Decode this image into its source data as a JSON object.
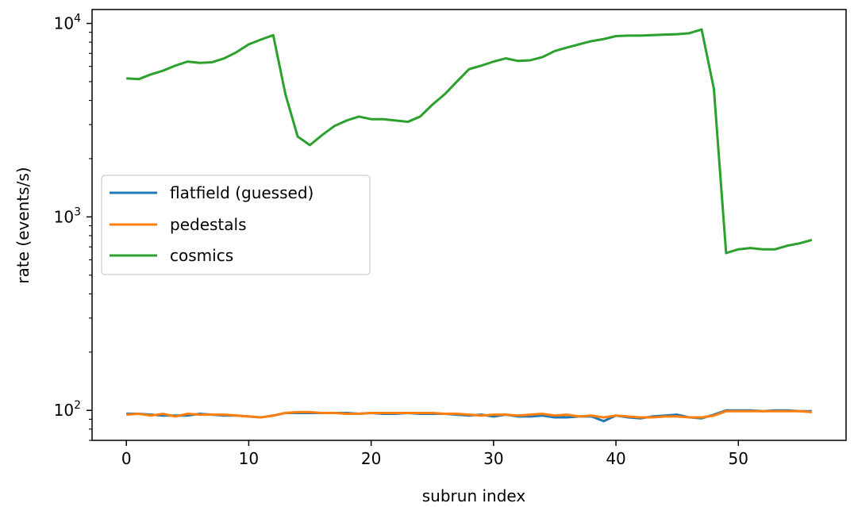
{
  "chart_data": {
    "type": "line",
    "title": "",
    "xlabel": "subrun index",
    "ylabel": "rate (events/s)",
    "yscale": "log",
    "xlim": [
      -2.8,
      58.8
    ],
    "ylim": [
      70,
      11800
    ],
    "grid": false,
    "legend_position": "center-left",
    "x_ticks": [
      0,
      10,
      20,
      30,
      40,
      50
    ],
    "y_ticks": [
      {
        "value": 100,
        "base": "10",
        "exp": "2"
      },
      {
        "value": 1000,
        "base": "10",
        "exp": "3"
      },
      {
        "value": 10000,
        "base": "10",
        "exp": "4"
      }
    ],
    "x": [
      0,
      1,
      2,
      3,
      4,
      5,
      6,
      7,
      8,
      9,
      10,
      11,
      12,
      13,
      14,
      15,
      16,
      17,
      18,
      19,
      20,
      21,
      22,
      23,
      24,
      25,
      26,
      27,
      28,
      29,
      30,
      31,
      32,
      33,
      34,
      35,
      36,
      37,
      38,
      39,
      40,
      41,
      42,
      43,
      44,
      45,
      46,
      47,
      48,
      49,
      50,
      51,
      52,
      53,
      54,
      55,
      56
    ],
    "series": [
      {
        "name": "flatfield (guessed)",
        "color": "#1f77b4",
        "values": [
          96,
          96,
          95,
          94,
          94,
          94,
          96,
          95,
          94,
          94,
          93,
          92,
          94,
          97,
          97,
          97,
          97,
          97,
          97,
          96,
          97,
          96,
          96,
          97,
          96,
          96,
          96,
          95,
          94,
          95,
          93,
          95,
          93,
          93,
          94,
          92,
          92,
          93,
          93,
          88,
          94,
          92,
          91,
          93,
          94,
          95,
          92,
          91,
          95,
          100,
          100,
          100,
          99,
          100,
          100,
          99,
          99
        ]
      },
      {
        "name": "pedestals",
        "color": "#ff7f0e",
        "values": [
          95,
          96,
          94,
          96,
          93,
          96,
          95,
          95,
          95,
          94,
          93,
          92,
          94,
          97,
          98,
          98,
          97,
          97,
          96,
          96,
          97,
          97,
          97,
          97,
          97,
          97,
          96,
          96,
          95,
          94,
          95,
          95,
          94,
          95,
          96,
          94,
          95,
          93,
          94,
          92,
          94,
          93,
          92,
          92,
          93,
          93,
          92,
          92,
          94,
          99,
          99,
          99,
          99,
          99,
          99,
          99,
          98
        ]
      },
      {
        "name": "cosmics",
        "color": "#2ca02c",
        "values": [
          5200,
          5150,
          5450,
          5700,
          6050,
          6350,
          6250,
          6300,
          6600,
          7100,
          7800,
          8250,
          8700,
          4300,
          2600,
          2350,
          2650,
          2950,
          3150,
          3300,
          3200,
          3200,
          3150,
          3100,
          3300,
          3800,
          4300,
          5000,
          5800,
          6050,
          6350,
          6600,
          6400,
          6450,
          6700,
          7200,
          7500,
          7800,
          8100,
          8300,
          8600,
          8650,
          8650,
          8700,
          8750,
          8800,
          8900,
          9300,
          4600,
          650,
          680,
          690,
          680,
          680,
          710,
          730,
          760
        ]
      }
    ]
  }
}
